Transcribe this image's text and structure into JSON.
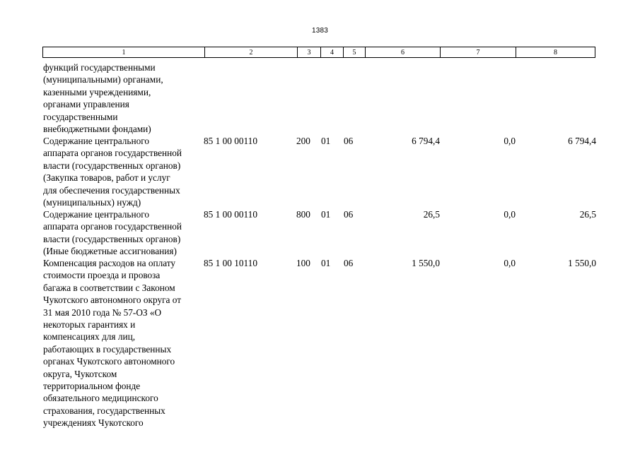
{
  "page_number": "1383",
  "header": [
    "1",
    "2",
    "3",
    "4",
    "5",
    "6",
    "7",
    "8"
  ],
  "rows": [
    {
      "name": "функций государственными\n(муниципальными) органами,\nказенными учреждениями,\nорганами управления\nгосударственными\nвнебюджетными фондами)",
      "code": "",
      "vr": "",
      "rz": "",
      "pr": "",
      "v6": "",
      "v7": "",
      "v8": ""
    },
    {
      "name": "Содержание центрального\nаппарата органов государственной\nвласти (государственных органов)\n(Закупка товаров, работ и услуг\nдля обеспечения государственных\n(муниципальных) нужд)",
      "code": "85 1 00 00110",
      "vr": "200",
      "rz": "01",
      "pr": "06",
      "v6": "6 794,4",
      "v7": "0,0",
      "v8": "6 794,4"
    },
    {
      "name": "Содержание центрального\nаппарата органов государственной\nвласти (государственных органов)\n(Иные бюджетные ассигнования)",
      "code": "85 1 00 00110",
      "vr": "800",
      "rz": "01",
      "pr": "06",
      "v6": "26,5",
      "v7": "0,0",
      "v8": "26,5"
    },
    {
      "name": "Компенсация расходов на оплату\nстоимости проезда и провоза\nбагажа в соответствии с Законом\nЧукотского автономного округа от\n31 мая 2010 года № 57-ОЗ «О\nнекоторых гарантиях и\nкомпенсациях для лиц,\nработающих в государственных\nорганах Чукотского автономного\nокруга, Чукотском\nтерриториальном фонде\nобязательного медицинского\nстрахования, государственных\nучреждениях Чукотского",
      "code": "85 1 00 10110",
      "vr": "100",
      "rz": "01",
      "pr": "06",
      "v6": "1 550,0",
      "v7": "0,0",
      "v8": "1 550,0"
    }
  ]
}
